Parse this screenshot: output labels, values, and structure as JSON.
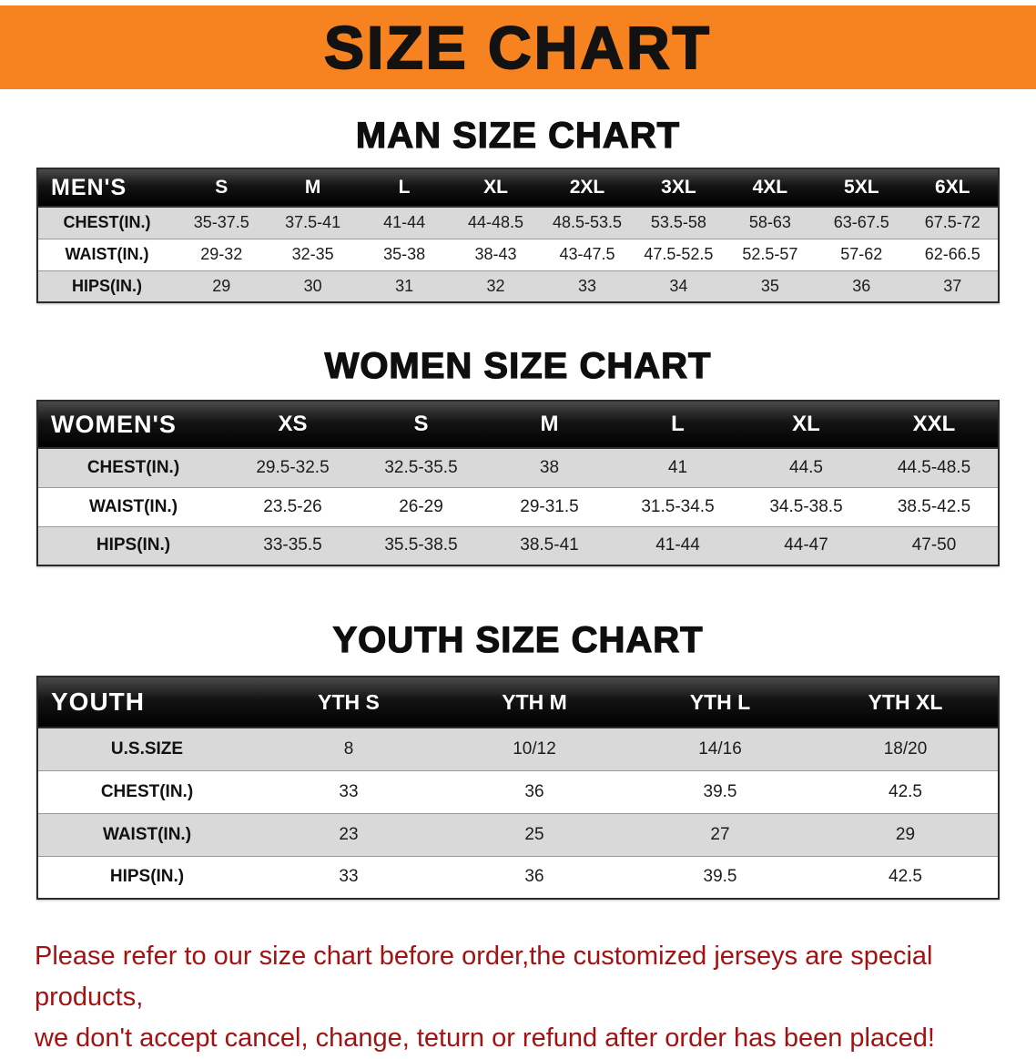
{
  "banner": {
    "title": "SIZE CHART",
    "background_color": "#f68320"
  },
  "sections": {
    "men": {
      "heading": "MAN SIZE CHART",
      "table": {
        "header": [
          "MEN'S",
          "S",
          "M",
          "L",
          "XL",
          "2XL",
          "3XL",
          "4XL",
          "5XL",
          "6XL"
        ],
        "rows": [
          {
            "label": "CHEST(IN.)",
            "values": [
              "35-37.5",
              "37.5-41",
              "41-44",
              "44-48.5",
              "48.5-53.5",
              "53.5-58",
              "58-63",
              "63-67.5",
              "67.5-72"
            ]
          },
          {
            "label": "WAIST(IN.)",
            "values": [
              "29-32",
              "32-35",
              "35-38",
              "38-43",
              "43-47.5",
              "47.5-52.5",
              "52.5-57",
              "57-62",
              "62-66.5"
            ]
          },
          {
            "label": "HIPS(IN.)",
            "values": [
              "29",
              "30",
              "31",
              "32",
              "33",
              "34",
              "35",
              "36",
              "37"
            ]
          }
        ]
      }
    },
    "women": {
      "heading": "WOMEN SIZE CHART",
      "table": {
        "header": [
          "WOMEN'S",
          "XS",
          "S",
          "M",
          "L",
          "XL",
          "XXL"
        ],
        "rows": [
          {
            "label": "CHEST(IN.)",
            "values": [
              "29.5-32.5",
              "32.5-35.5",
              "38",
              "41",
              "44.5",
              "44.5-48.5"
            ]
          },
          {
            "label": "WAIST(IN.)",
            "values": [
              "23.5-26",
              "26-29",
              "29-31.5",
              "31.5-34.5",
              "34.5-38.5",
              "38.5-42.5"
            ]
          },
          {
            "label": "HIPS(IN.)",
            "values": [
              "33-35.5",
              "35.5-38.5",
              "38.5-41",
              "41-44",
              "44-47",
              "47-50"
            ]
          }
        ]
      }
    },
    "youth": {
      "heading": "YOUTH SIZE CHART",
      "table": {
        "header": [
          "YOUTH",
          "YTH S",
          "YTH M",
          "YTH L",
          "YTH XL"
        ],
        "rows": [
          {
            "label": "U.S.SIZE",
            "values": [
              "8",
              "10/12",
              "14/16",
              "18/20"
            ]
          },
          {
            "label": "CHEST(IN.)",
            "values": [
              "33",
              "36",
              "39.5",
              "42.5"
            ]
          },
          {
            "label": "WAIST(IN.)",
            "values": [
              "23",
              "25",
              "27",
              "29"
            ]
          },
          {
            "label": "HIPS(IN.)",
            "values": [
              "33",
              "36",
              "39.5",
              "42.5"
            ]
          }
        ]
      }
    }
  },
  "footer": {
    "line1": "Please refer to our size chart before order,the customized jerseys are special products,",
    "line2": "we don't accept cancel, change, teturn or refund after order has been placed!",
    "text_color": "#a31212"
  }
}
